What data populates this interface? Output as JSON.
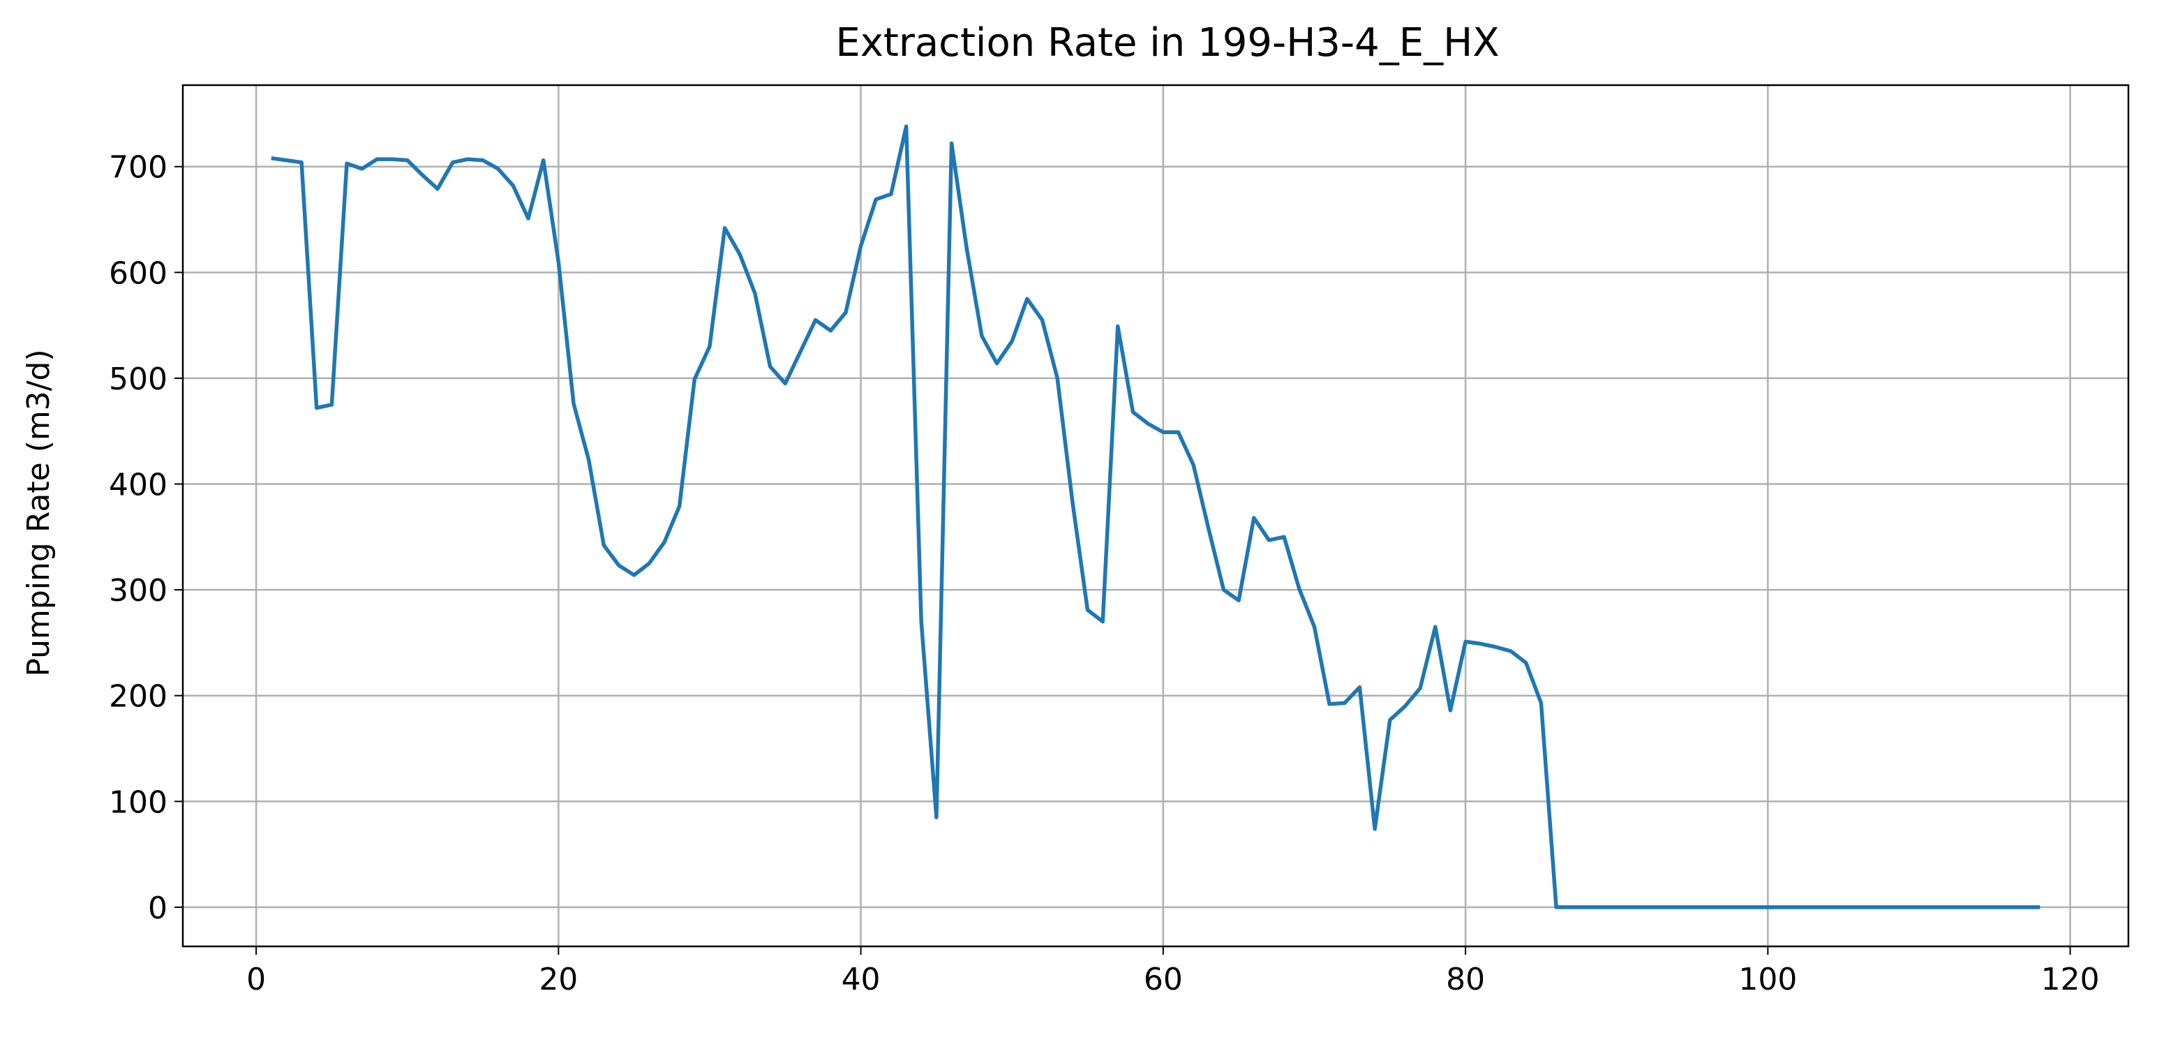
{
  "chart_data": {
    "type": "line",
    "title": "Extraction Rate in 199-H3-4_E_HX",
    "xlabel": "",
    "ylabel": "Pumping Rate (m3/d)",
    "xlim": [
      -4.85,
      123.85
    ],
    "ylim": [
      -37,
      777
    ],
    "x_ticks": [
      0,
      20,
      40,
      60,
      80,
      100,
      120
    ],
    "y_ticks": [
      0,
      100,
      200,
      300,
      400,
      500,
      600,
      700
    ],
    "grid": true,
    "legend": "none",
    "series": [
      {
        "color": "#1f77b4",
        "x": [
          1,
          2,
          3,
          4,
          5,
          6,
          7,
          8,
          9,
          10,
          11,
          12,
          13,
          14,
          15,
          16,
          17,
          18,
          19,
          20,
          21,
          22,
          23,
          24,
          25,
          26,
          27,
          28,
          29,
          30,
          31,
          32,
          33,
          34,
          35,
          36,
          37,
          38,
          39,
          40,
          41,
          42,
          43,
          44,
          45,
          46,
          47,
          48,
          49,
          50,
          51,
          52,
          53,
          54,
          55,
          56,
          57,
          58,
          59,
          60,
          61,
          62,
          63,
          64,
          65,
          66,
          67,
          68,
          69,
          70,
          71,
          72,
          73,
          74,
          75,
          76,
          77,
          78,
          79,
          80,
          81,
          82,
          83,
          84,
          85,
          86,
          87,
          88,
          89,
          90,
          91,
          92,
          93,
          94,
          95,
          96,
          97,
          98,
          99,
          100,
          101,
          102,
          103,
          104,
          105,
          106,
          107,
          108,
          109,
          110,
          111,
          112,
          113,
          114,
          115,
          116,
          117,
          118
        ],
        "y": [
          708,
          706,
          704,
          472,
          475,
          703,
          698,
          707,
          707,
          706,
          692,
          679,
          704,
          707,
          706,
          698,
          682,
          651,
          706,
          610,
          476,
          423,
          342,
          323,
          314,
          325,
          345,
          379,
          499,
          530,
          642,
          617,
          580,
          511,
          495,
          525,
          555,
          545,
          562,
          625,
          669,
          674,
          738,
          270,
          85,
          722,
          623,
          540,
          514,
          535,
          575,
          555,
          500,
          383,
          281,
          270,
          549,
          468,
          457,
          449,
          449,
          418,
          358,
          300,
          290,
          368,
          347,
          350,
          301,
          265,
          192,
          193,
          208,
          74,
          177,
          190,
          207,
          265,
          186,
          251,
          249,
          246,
          242,
          231,
          193,
          0,
          0,
          0,
          0,
          0,
          0,
          0,
          0,
          0,
          0,
          0,
          0,
          0,
          0,
          0,
          0,
          0,
          0,
          0,
          0,
          0,
          0,
          0,
          0,
          0,
          0,
          0,
          0,
          0,
          0,
          0,
          0,
          0
        ]
      }
    ]
  }
}
